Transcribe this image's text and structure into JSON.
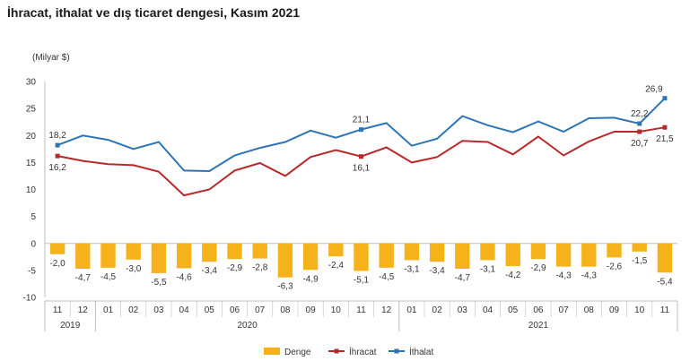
{
  "title": "İhracat, ithalat ve dış ticaret dengesi, Kasım 2021",
  "colors": {
    "denge": "#F5B21B",
    "ihracat": "#B72A2C",
    "ithalat": "#2E75B6",
    "axis": "#BFBFBF"
  },
  "chart_data": {
    "type": "bar+line",
    "unit_label": "(Milyar $)",
    "categories": [
      "11",
      "12",
      "01",
      "02",
      "03",
      "04",
      "05",
      "06",
      "07",
      "08",
      "09",
      "10",
      "11",
      "12",
      "01",
      "02",
      "03",
      "04",
      "05",
      "06",
      "07",
      "08",
      "09",
      "10",
      "11"
    ],
    "year_groups": [
      {
        "label": "2019",
        "count": 2
      },
      {
        "label": "2020",
        "count": 12
      },
      {
        "label": "2021",
        "count": 11
      }
    ],
    "ylim": [
      -10,
      30
    ],
    "yticks": [
      -10,
      -5,
      0,
      5,
      10,
      15,
      20,
      25,
      30
    ],
    "series": [
      {
        "name": "Denge",
        "type": "bar",
        "values": [
          -2.0,
          -4.7,
          -4.5,
          -3.0,
          -5.5,
          -4.6,
          -3.4,
          -2.9,
          -2.8,
          -6.3,
          -4.9,
          -2.4,
          -5.1,
          -4.5,
          -3.1,
          -3.4,
          -4.7,
          -3.1,
          -4.2,
          -2.9,
          -4.3,
          -4.3,
          -2.6,
          -1.5,
          -5.4
        ],
        "labels": [
          "-2,0",
          "-4,7",
          "-4,5",
          "-3,0",
          "-5,5",
          "-4,6",
          "-3,4",
          "-2,9",
          "-2,8",
          "-6,3",
          "-4,9",
          "-2,4",
          "-5,1",
          "-4,5",
          "-3,1",
          "-3,4",
          "-4,7",
          "-3,1",
          "-4,2",
          "-2,9",
          "-4,3",
          "-4,3",
          "-2,6",
          "-1,5",
          "-5,4"
        ]
      },
      {
        "name": "İhracat",
        "type": "line",
        "values": [
          16.2,
          15.3,
          14.7,
          14.5,
          13.3,
          8.9,
          10.0,
          13.5,
          14.9,
          12.5,
          16.0,
          17.3,
          16.1,
          17.8,
          15.0,
          16.0,
          19.0,
          18.8,
          16.5,
          19.8,
          16.3,
          18.9,
          20.7,
          20.7,
          21.5
        ]
      },
      {
        "name": "İthalat",
        "type": "line",
        "values": [
          18.2,
          20.0,
          19.2,
          17.5,
          18.8,
          13.5,
          13.4,
          16.3,
          17.7,
          18.8,
          20.9,
          19.6,
          21.1,
          22.3,
          18.1,
          19.4,
          23.6,
          21.9,
          20.6,
          22.6,
          20.7,
          23.2,
          23.3,
          22.2,
          26.9
        ]
      }
    ],
    "line_annotations": [
      {
        "series": "İthalat",
        "index": 0,
        "text": "18,2",
        "pos": "above"
      },
      {
        "series": "İhracat",
        "index": 0,
        "text": "16,2",
        "pos": "below"
      },
      {
        "series": "İthalat",
        "index": 12,
        "text": "21,1",
        "pos": "above"
      },
      {
        "series": "İhracat",
        "index": 12,
        "text": "16,1",
        "pos": "below"
      },
      {
        "series": "İthalat",
        "index": 23,
        "text": "22,2",
        "pos": "above"
      },
      {
        "series": "İhracat",
        "index": 23,
        "text": "20,7",
        "pos": "below"
      },
      {
        "series": "İthalat",
        "index": 24,
        "text": "26,9",
        "pos": "above-left"
      },
      {
        "series": "İhracat",
        "index": 24,
        "text": "21,5",
        "pos": "below"
      }
    ],
    "legend": {
      "placement": "bottom-center",
      "items": [
        "Denge",
        "İhracat",
        "İthalat"
      ]
    },
    "grid": false
  }
}
